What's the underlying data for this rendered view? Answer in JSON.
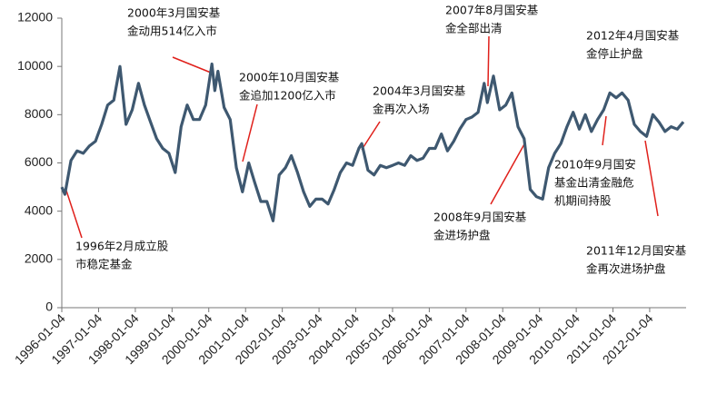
{
  "chart_data": {
    "type": "line",
    "x": [
      "1996-01-04",
      "1996-02-04",
      "1996-04-04",
      "1996-06-04",
      "1996-08-04",
      "1996-10-04",
      "1996-12-04",
      "1997-02-04",
      "1997-04-04",
      "1997-06-04",
      "1997-08-04",
      "1997-10-04",
      "1997-12-04",
      "1998-02-04",
      "1998-04-04",
      "1998-06-04",
      "1998-08-04",
      "1998-10-04",
      "1998-12-04",
      "1999-02-04",
      "1999-04-04",
      "1999-06-04",
      "1999-08-04",
      "1999-10-04",
      "1999-12-04",
      "2000-02-04",
      "2000-03-04",
      "2000-04-04",
      "2000-06-04",
      "2000-08-04",
      "2000-10-04",
      "2000-12-04",
      "2001-02-04",
      "2001-04-04",
      "2001-06-04",
      "2001-08-04",
      "2001-10-04",
      "2001-12-04",
      "2002-02-04",
      "2002-04-04",
      "2002-06-04",
      "2002-08-04",
      "2002-10-04",
      "2002-12-04",
      "2003-02-04",
      "2003-04-04",
      "2003-06-04",
      "2003-08-04",
      "2003-10-04",
      "2003-12-04",
      "2004-02-04",
      "2004-03-04",
      "2004-05-04",
      "2004-07-04",
      "2004-09-04",
      "2004-11-04",
      "2005-01-04",
      "2005-03-04",
      "2005-05-04",
      "2005-07-04",
      "2005-09-04",
      "2005-11-04",
      "2006-01-04",
      "2006-03-04",
      "2006-05-04",
      "2006-07-04",
      "2006-09-04",
      "2006-11-04",
      "2007-01-04",
      "2007-03-04",
      "2007-05-04",
      "2007-07-04",
      "2007-08-04",
      "2007-10-04",
      "2007-12-04",
      "2008-02-04",
      "2008-04-04",
      "2008-06-04",
      "2008-08-04",
      "2008-10-04",
      "2008-12-04",
      "2009-02-04",
      "2009-04-04",
      "2009-06-04",
      "2009-08-04",
      "2009-10-04",
      "2009-12-04",
      "2010-02-04",
      "2010-04-04",
      "2010-06-04",
      "2010-08-04",
      "2010-10-04",
      "2010-12-04",
      "2011-02-04",
      "2011-04-04",
      "2011-06-04",
      "2011-08-04",
      "2011-10-04",
      "2011-12-04",
      "2012-02-04",
      "2012-04-04",
      "2012-06-04",
      "2012-08-04",
      "2012-10-04",
      "2012-12-04"
    ],
    "series": [
      {
        "color": "#3e5870",
        "values": [
          5000,
          4700,
          6100,
          6500,
          6400,
          6700,
          6900,
          7600,
          8400,
          8600,
          10000,
          7600,
          8200,
          9300,
          8400,
          7700,
          7000,
          6600,
          6400,
          5600,
          7500,
          8400,
          7800,
          7800,
          8400,
          10100,
          9000,
          9800,
          8300,
          7800,
          5800,
          4800,
          6000,
          5200,
          4400,
          4400,
          3600,
          5500,
          5800,
          6300,
          5600,
          4800,
          4200,
          4500,
          4500,
          4300,
          4900,
          5600,
          6000,
          5900,
          6600,
          6800,
          5700,
          5500,
          5900,
          5800,
          5900,
          6000,
          5900,
          6300,
          6100,
          6200,
          6600,
          6600,
          7200,
          6500,
          6900,
          7400,
          7800,
          7900,
          8100,
          9300,
          8500,
          9600,
          8200,
          8400,
          8900,
          7500,
          7000,
          4900,
          4600,
          4500,
          5800,
          6400,
          6800,
          7500,
          8100,
          7400,
          8000,
          7300,
          7800,
          8200,
          8900,
          8700,
          8900,
          8600,
          7600,
          7300,
          7100,
          8000,
          7700,
          7300,
          7500,
          7400,
          7700
        ]
      }
    ],
    "xlim": [
      "1996-01-04",
      "2012-12-31"
    ],
    "xticks": [
      "1996-01-04",
      "1997-01-04",
      "1998-01-04",
      "1999-01-04",
      "2000-01-04",
      "2001-01-04",
      "2002-01-04",
      "2003-01-04",
      "2004-01-04",
      "2005-01-04",
      "2006-01-04",
      "2007-01-04",
      "2008-01-04",
      "2009-01-04",
      "2010-01-04",
      "2011-01-04",
      "2012-01-04"
    ],
    "ylim": [
      0,
      12000
    ],
    "yticks": [
      0,
      2000,
      4000,
      6000,
      8000,
      10000,
      12000
    ],
    "grid": false,
    "annotations": [
      [
        "2000年3月国安基",
        "金动用514亿入市"
      ],
      [
        "2000年10月国安基",
        "金追加1200亿入市"
      ],
      [
        "2007年8月国安基",
        "金全部出清"
      ],
      [
        "2012年4月国安基",
        "金停止护盘"
      ],
      [
        "2004年3月国安基",
        "金再次入场"
      ],
      [
        "1996年2月成立股",
        "市稳定基金"
      ],
      [
        "2008年9月国安基",
        "金进场护盘"
      ],
      [
        "2010年9月国安",
        "基金出清金融危",
        "机期间持股"
      ],
      [
        "2011年12月国安基",
        "金再次进场护盘"
      ]
    ]
  }
}
